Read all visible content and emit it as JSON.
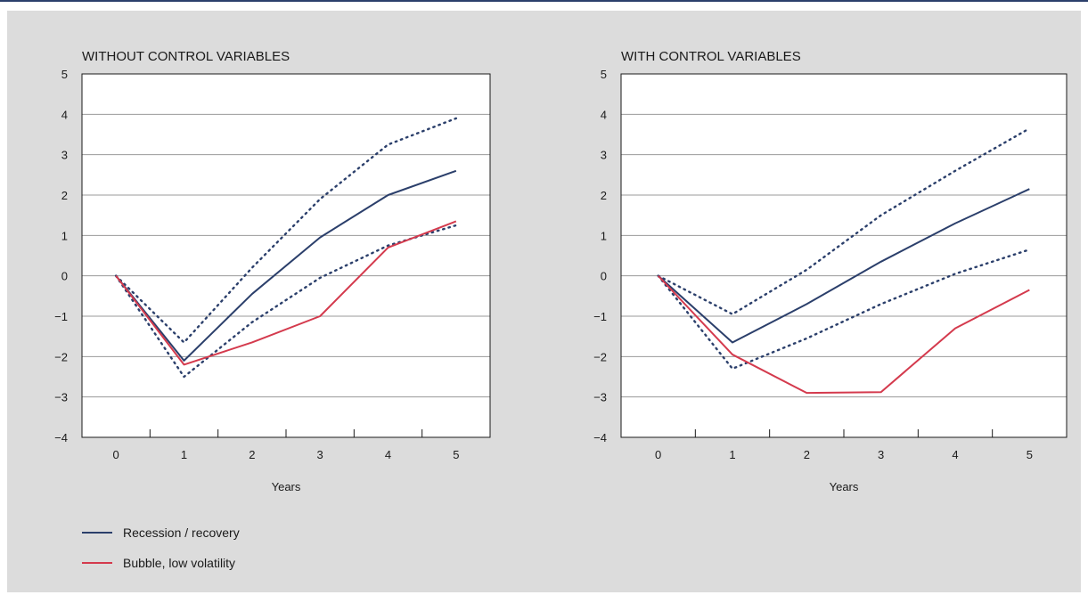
{
  "colors": {
    "recession": "#2b3f6b",
    "bubble": "#d43a4d",
    "grid": "#9a9a9a",
    "panel": "#dcdcdc"
  },
  "legend": {
    "items": [
      {
        "label": "Recession / recovery",
        "color": "#2b3f6b"
      },
      {
        "label": "Bubble, low volatility",
        "color": "#d43a4d"
      }
    ]
  },
  "chart_data": [
    {
      "type": "line",
      "title": "WITHOUT CONTROL VARIABLES",
      "xlabel": "Years",
      "ylabel": "",
      "x": [
        0,
        1,
        2,
        3,
        4,
        5
      ],
      "xticks": [
        "0",
        "1",
        "2",
        "3",
        "4",
        "5"
      ],
      "yticks": [
        "5",
        "4",
        "3",
        "2",
        "1",
        "0",
        "−1",
        "−2",
        "−3",
        "−4"
      ],
      "ylim": [
        -4,
        5
      ],
      "grid": true,
      "series": [
        {
          "name": "Recession / recovery",
          "values": [
            0,
            -2.1,
            -0.45,
            0.95,
            2.0,
            2.6
          ],
          "style": "solid",
          "color": "#2b3f6b"
        },
        {
          "name": "",
          "values": [
            0,
            -1.65,
            0.2,
            1.9,
            3.25,
            3.9
          ],
          "style": "dotted",
          "color": "#2b3f6b"
        },
        {
          "name": "",
          "values": [
            0,
            -2.5,
            -1.15,
            -0.05,
            0.75,
            1.25
          ],
          "style": "dotted",
          "color": "#2b3f6b"
        },
        {
          "name": "Bubble, low volatility",
          "values": [
            0,
            -2.2,
            -1.65,
            -1.0,
            0.7,
            1.35
          ],
          "style": "solid",
          "color": "#d43a4d"
        }
      ]
    },
    {
      "type": "line",
      "title": "WITH CONTROL VARIABLES",
      "xlabel": "Years",
      "ylabel": "",
      "x": [
        0,
        1,
        2,
        3,
        4,
        5
      ],
      "xticks": [
        "0",
        "1",
        "2",
        "3",
        "4",
        "5"
      ],
      "yticks": [
        "5",
        "4",
        "3",
        "2",
        "1",
        "0",
        "−1",
        "−2",
        "−3",
        "−4"
      ],
      "ylim": [
        -4,
        5
      ],
      "grid": true,
      "series": [
        {
          "name": "Recession / recovery",
          "values": [
            0,
            -1.65,
            -0.7,
            0.35,
            1.3,
            2.15
          ],
          "style": "solid",
          "color": "#2b3f6b"
        },
        {
          "name": "",
          "values": [
            0,
            -0.95,
            0.15,
            1.5,
            2.6,
            3.65
          ],
          "style": "dotted",
          "color": "#2b3f6b"
        },
        {
          "name": "",
          "values": [
            0,
            -2.3,
            -1.55,
            -0.7,
            0.05,
            0.65
          ],
          "style": "dotted",
          "color": "#2b3f6b"
        },
        {
          "name": "Bubble, low volatility",
          "values": [
            0,
            -1.95,
            -2.9,
            -2.88,
            -1.3,
            -0.35
          ],
          "style": "solid",
          "color": "#d43a4d"
        }
      ]
    }
  ]
}
